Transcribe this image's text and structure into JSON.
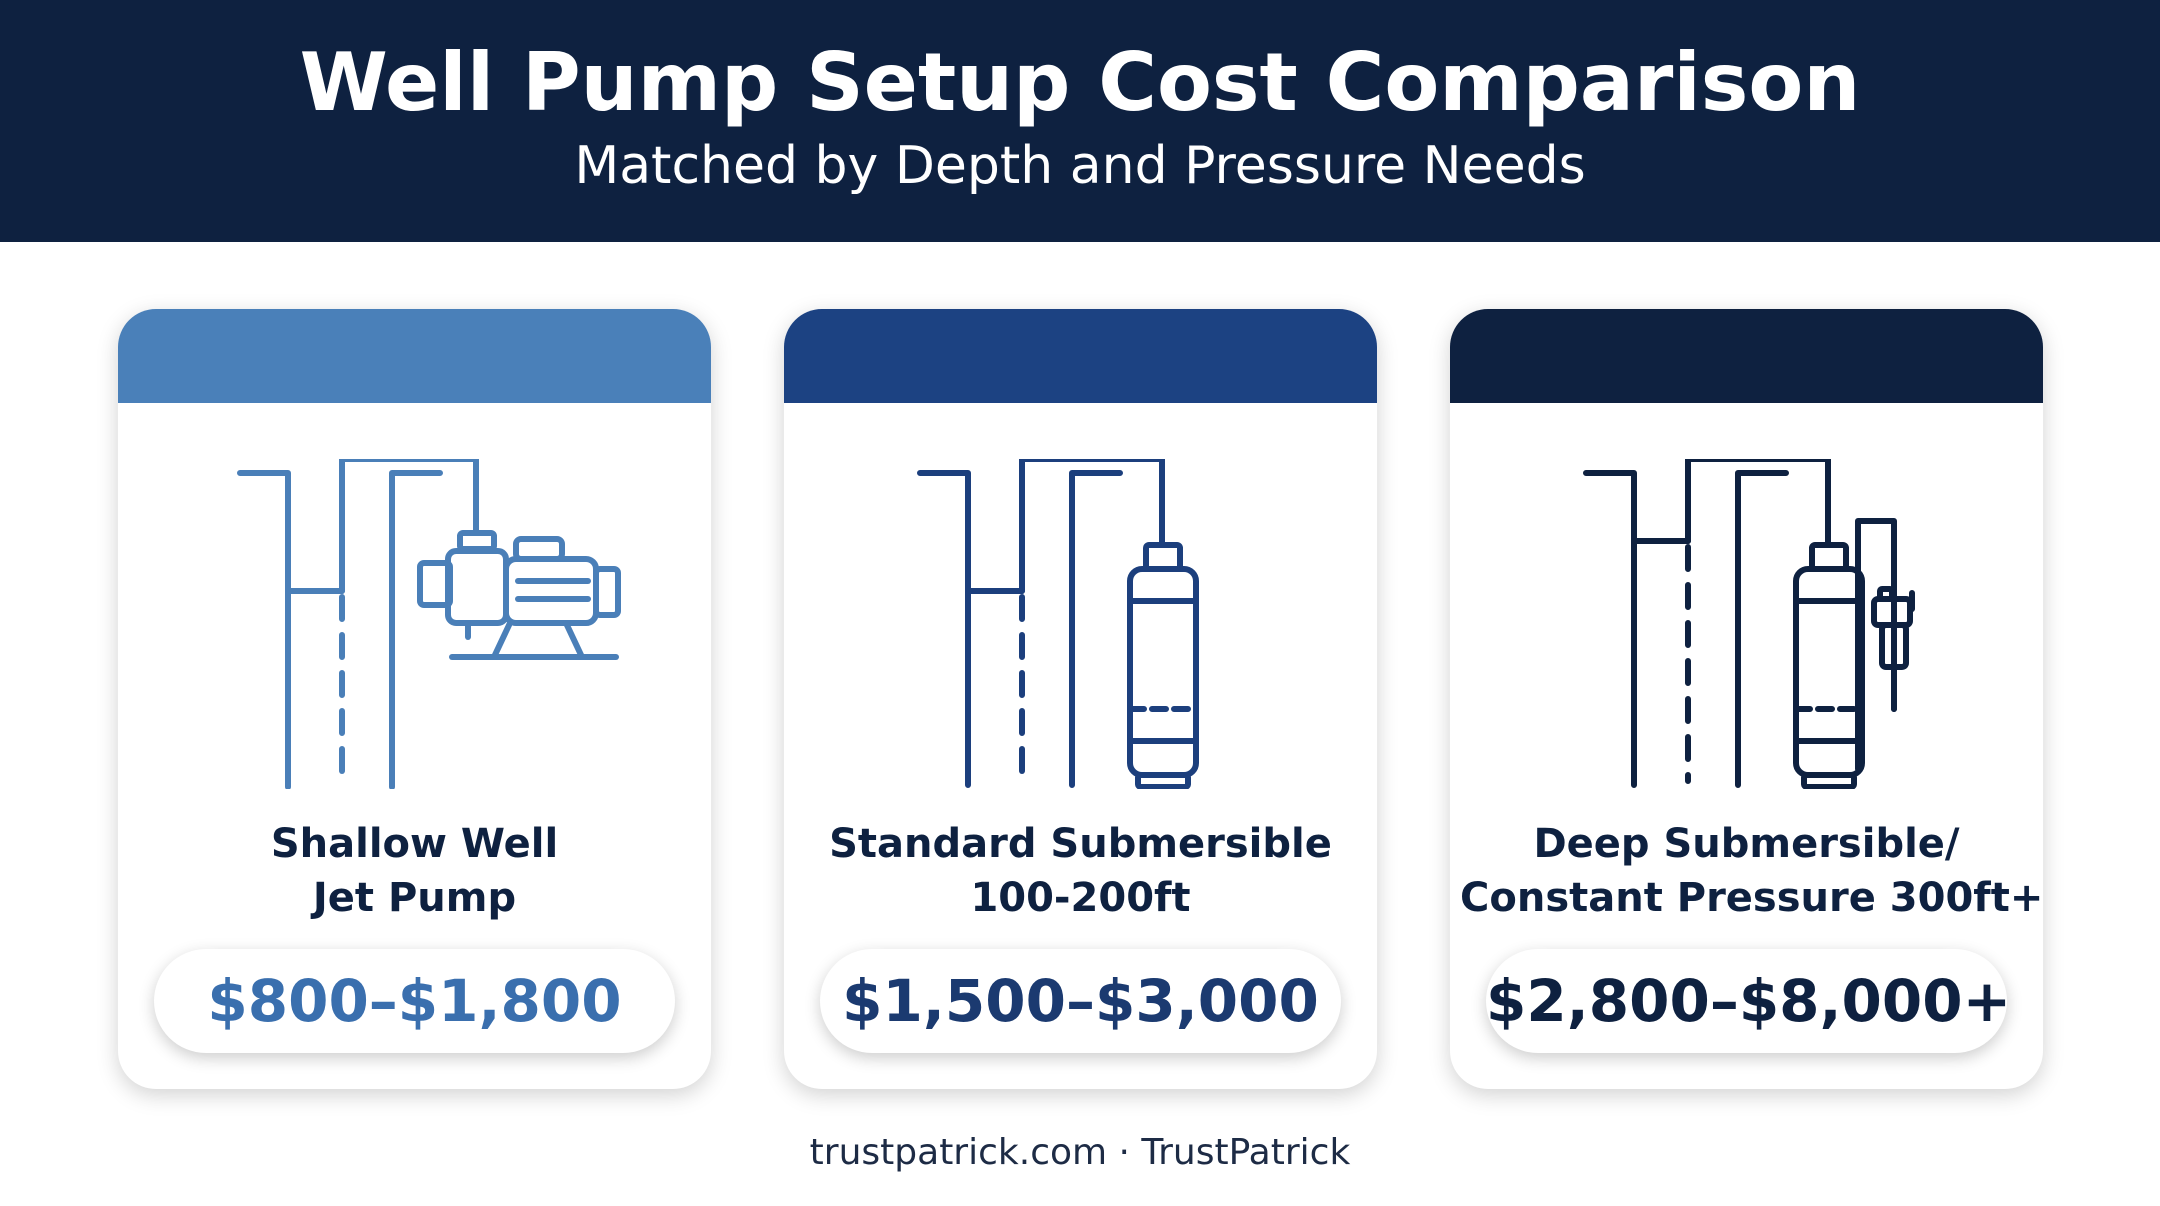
{
  "header": {
    "title": "Well Pump Setup Cost Comparison",
    "subtitle": "Matched by Depth and Pressure Needs"
  },
  "cards": [
    {
      "name_line1": "Shallow Well",
      "name_line2": "Jet Pump",
      "price": "$800–$1,800",
      "icon": "jet-pump-icon",
      "band_color": "#4a80b9",
      "illustration_color": "#4a7fb8",
      "price_color": "#3a6fae"
    },
    {
      "name_line1": "Standard Submersible",
      "name_line2": "100-200ft",
      "price": "$1,500–$3,000",
      "icon": "submersible-pump-icon",
      "band_color": "#1c4282",
      "illustration_color": "#1c3f7d",
      "price_color": "#1b3a70"
    },
    {
      "name_line1": "Deep Submersible/",
      "name_line2": "Constant Pressure 300ft+",
      "price": "$2,800–$8,000+",
      "icon": "deep-submersible-pump-icon",
      "band_color": "#0e2140",
      "illustration_color": "#0e2140",
      "price_color": "#0e2140"
    }
  ],
  "footer": {
    "text": "trustpatrick.com · TrustPatrick"
  }
}
